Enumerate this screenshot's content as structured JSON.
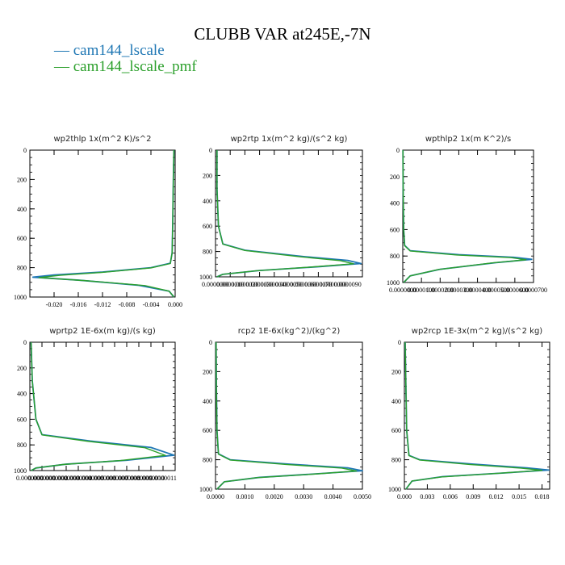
{
  "header": {
    "title": "CLUBB VAR at245E,-7N",
    "legend": [
      {
        "label": "cam144_lscale",
        "color": "#1f77b4"
      },
      {
        "label": "cam144_lscale_pmf",
        "color": "#2ca02c"
      }
    ]
  },
  "chart_data": [
    {
      "type": "line",
      "title": "wp2thlp  1x(m^2 K)/s^2",
      "xlim": [
        -0.024,
        0.0
      ],
      "ylim": [
        1000,
        0
      ],
      "xticks": [
        -0.02,
        -0.016,
        -0.012,
        -0.008,
        -0.004,
        0.0
      ],
      "xtick_labels": [
        "-0.020",
        "-0.016",
        "-0.012",
        "-0.008",
        "-0.004",
        "0.000"
      ],
      "yticks": [
        0,
        200,
        400,
        600,
        800,
        1000
      ],
      "ytick_labels": [
        "0",
        "200",
        "400",
        "600",
        "800",
        "1000"
      ],
      "series": [
        {
          "name": "cam144_lscale",
          "color": "#1f77b4",
          "x": [
            -0.0002,
            -0.0003,
            -0.0004,
            -0.0005,
            -0.0008,
            -0.004,
            -0.012,
            -0.02,
            -0.0235,
            -0.016,
            -0.006,
            -0.001,
            -0.0002
          ],
          "y": [
            0,
            200,
            500,
            700,
            770,
            800,
            830,
            850,
            865,
            885,
            920,
            960,
            1000
          ]
        },
        {
          "name": "cam144_lscale_pmf",
          "color": "#2ca02c",
          "x": [
            -0.0002,
            -0.0003,
            -0.0004,
            -0.0005,
            -0.0008,
            -0.004,
            -0.012,
            -0.019,
            -0.0225,
            -0.015,
            -0.005,
            -0.001,
            -0.0002
          ],
          "y": [
            0,
            200,
            500,
            700,
            772,
            802,
            832,
            852,
            868,
            888,
            922,
            960,
            1000
          ]
        }
      ]
    },
    {
      "type": "line",
      "title": "wp2rtp  1x(m^2 kg)/(s^2 kg)",
      "xlim": [
        0.0,
        1e-05
      ],
      "ylim": [
        1000,
        0
      ],
      "xticks": [
        0.0,
        1e-06,
        2e-06,
        3e-06,
        4e-06,
        5e-06,
        6e-06,
        7e-06,
        8e-06,
        9e-06
      ],
      "xtick_labels": [
        "0.0000000",
        "0.0000010",
        "0.0000020",
        "0.0000030",
        "0.0000040",
        "0.0000050",
        "0.0000060",
        "0.0000070",
        "0.0000080",
        "0.0000090"
      ],
      "yticks": [
        0,
        200,
        400,
        600,
        800,
        1000
      ],
      "ytick_labels": [
        "0",
        "200",
        "400",
        "600",
        "800",
        "1000"
      ],
      "series": [
        {
          "name": "cam144_lscale",
          "color": "#1f77b4",
          "x": [
            1e-07,
            1e-07,
            2e-07,
            5e-07,
            2e-06,
            6e-06,
            9e-06,
            9.9e-06,
            7e-06,
            3e-06,
            5e-07,
            1e-07
          ],
          "y": [
            0,
            300,
            600,
            740,
            790,
            840,
            870,
            895,
            920,
            950,
            980,
            1000
          ]
        },
        {
          "name": "cam144_lscale_pmf",
          "color": "#2ca02c",
          "x": [
            1e-07,
            1e-07,
            2e-07,
            5e-07,
            2e-06,
            5.8e-06,
            8.5e-06,
            9.4e-06,
            6.6e-06,
            2.8e-06,
            5e-07,
            1e-07
          ],
          "y": [
            0,
            300,
            600,
            742,
            792,
            842,
            872,
            897,
            922,
            952,
            980,
            1000
          ]
        }
      ]
    },
    {
      "type": "line",
      "title": "wpthlp2  1x(m K^2)/s",
      "xlim": [
        0.0,
        7e-05
      ],
      "ylim": [
        1000,
        0
      ],
      "xticks": [
        0.0,
        1e-05,
        2e-05,
        3e-05,
        4e-05,
        5e-05,
        6e-05,
        7e-05
      ],
      "xtick_labels": [
        "0.0000000",
        "0.0000100",
        "0.0000200",
        "0.0000300",
        "0.0000400",
        "0.0000500",
        "0.0000600",
        "0.0000700"
      ],
      "yticks": [
        0,
        200,
        400,
        600,
        800,
        1000
      ],
      "ytick_labels": [
        "0",
        "200",
        "400",
        "600",
        "800",
        "1000"
      ],
      "series": [
        {
          "name": "cam144_lscale",
          "color": "#1f77b4",
          "x": [
            1e-07,
            2e-07,
            5e-07,
            1e-06,
            4e-06,
            3e-05,
            6e-05,
            6.9e-05,
            5e-05,
            2e-05,
            4e-06,
            5e-07
          ],
          "y": [
            0,
            300,
            600,
            720,
            760,
            790,
            810,
            825,
            850,
            900,
            950,
            1000
          ]
        },
        {
          "name": "cam144_lscale_pmf",
          "color": "#2ca02c",
          "x": [
            1e-07,
            2e-07,
            5e-07,
            1e-06,
            4e-06,
            2.9e-05,
            5.8e-05,
            6.6e-05,
            4.8e-05,
            1.9e-05,
            4e-06,
            5e-07
          ],
          "y": [
            0,
            300,
            600,
            722,
            762,
            792,
            812,
            828,
            852,
            902,
            950,
            1000
          ]
        }
      ]
    },
    {
      "type": "line",
      "title": "wprtp2  1E-6x(m kg)/(s kg)",
      "xlim": [
        0.0,
        1.2e-06
      ],
      "ylim": [
        1000,
        0
      ],
      "xticks": [
        0.0,
        1e-07,
        2e-07,
        3e-07,
        4e-07,
        5e-07,
        6e-07,
        7e-07,
        8e-07,
        9e-07,
        1e-06,
        1.1e-06
      ],
      "xtick_labels": [
        "0.0000000",
        "0.0000001",
        "0.0000002",
        "0.0000003",
        "0.0000004",
        "0.0000005",
        "0.0000006",
        "0.0000007",
        "0.0000008",
        "0.0000009",
        "0.0000010",
        "0.0000011"
      ],
      "yticks": [
        0,
        200,
        400,
        600,
        800,
        1000
      ],
      "ytick_labels": [
        "0",
        "200",
        "400",
        "600",
        "800",
        "1000"
      ],
      "series": [
        {
          "name": "cam144_lscale",
          "color": "#1f77b4",
          "x": [
            1e-08,
            2e-08,
            5e-08,
            1e-07,
            5e-07,
            1e-06,
            1.19e-06,
            8e-07,
            3e-07,
            5e-08,
            1e-08
          ],
          "y": [
            0,
            300,
            600,
            720,
            770,
            820,
            880,
            920,
            950,
            980,
            1000
          ]
        },
        {
          "name": "cam144_lscale_pmf",
          "color": "#2ca02c",
          "x": [
            1e-08,
            2e-08,
            5e-08,
            1e-07,
            4.8e-07,
            9.5e-07,
            1.12e-06,
            7.5e-07,
            2.8e-07,
            5e-08,
            1e-08
          ],
          "y": [
            0,
            300,
            600,
            722,
            772,
            822,
            882,
            922,
            952,
            980,
            1000
          ]
        }
      ]
    },
    {
      "type": "line",
      "title": "rcp2  1E-6x(kg^2)/(kg^2)",
      "xlim": [
        0.0,
        0.005
      ],
      "ylim": [
        1000,
        0
      ],
      "xticks": [
        0.0,
        0.001,
        0.002,
        0.003,
        0.004,
        0.005
      ],
      "xtick_labels": [
        "0.0000",
        "0.0010",
        "0.0020",
        "0.0030",
        "0.0040",
        "0.0050"
      ],
      "yticks": [
        0,
        200,
        400,
        600,
        800,
        1000
      ],
      "ytick_labels": [
        "0",
        "200",
        "400",
        "600",
        "800",
        "1000"
      ],
      "series": [
        {
          "name": "cam144_lscale",
          "color": "#1f77b4",
          "x": [
            2e-05,
            3e-05,
            5e-05,
            0.0001,
            0.0005,
            0.0025,
            0.0045,
            0.005,
            0.0035,
            0.0015,
            0.0003,
            5e-05
          ],
          "y": [
            0,
            300,
            600,
            760,
            800,
            830,
            855,
            875,
            895,
            920,
            950,
            1000
          ]
        },
        {
          "name": "cam144_lscale_pmf",
          "color": "#2ca02c",
          "x": [
            2e-05,
            3e-05,
            5e-05,
            0.0001,
            0.0005,
            0.0024,
            0.0043,
            0.0048,
            0.0034,
            0.0014,
            0.0003,
            5e-05
          ],
          "y": [
            0,
            300,
            600,
            762,
            802,
            832,
            857,
            877,
            897,
            922,
            950,
            1000
          ]
        }
      ]
    },
    {
      "type": "line",
      "title": "wp2rcp  1E-3x(m^2 kg)/(s^2 kg)",
      "xlim": [
        0.0,
        0.019
      ],
      "ylim": [
        1000,
        0
      ],
      "xticks": [
        0.0,
        0.003,
        0.006,
        0.009,
        0.012,
        0.015,
        0.018
      ],
      "xtick_labels": [
        "0.000",
        "0.003",
        "0.006",
        "0.009",
        "0.012",
        "0.015",
        "0.018"
      ],
      "yticks": [
        0,
        200,
        400,
        600,
        800,
        1000
      ],
      "ytick_labels": [
        "0",
        "200",
        "400",
        "600",
        "800",
        "1000"
      ],
      "series": [
        {
          "name": "cam144_lscale",
          "color": "#1f77b4",
          "x": [
            0.0001,
            0.0002,
            0.0003,
            0.0006,
            0.002,
            0.009,
            0.016,
            0.0189,
            0.013,
            0.005,
            0.001,
            0.0002
          ],
          "y": [
            0,
            300,
            600,
            770,
            800,
            830,
            855,
            870,
            890,
            915,
            945,
            1000
          ]
        },
        {
          "name": "cam144_lscale_pmf",
          "color": "#2ca02c",
          "x": [
            0.0001,
            0.0002,
            0.0003,
            0.0006,
            0.002,
            0.0085,
            0.0152,
            0.018,
            0.0124,
            0.0048,
            0.001,
            0.0002
          ],
          "y": [
            0,
            300,
            600,
            772,
            802,
            832,
            857,
            872,
            892,
            917,
            945,
            1000
          ]
        }
      ]
    }
  ]
}
